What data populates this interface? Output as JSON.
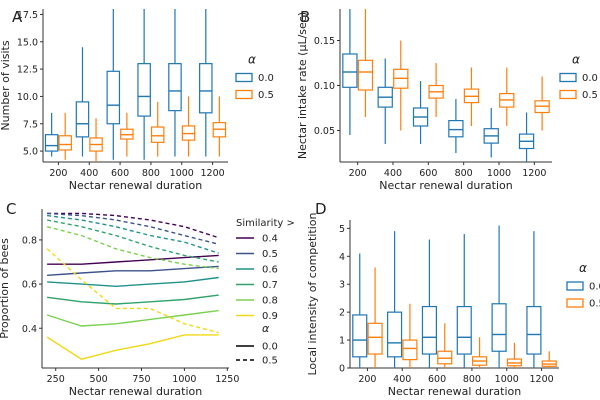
{
  "colors": {
    "alpha0": "#1f77b4",
    "alpha05": "#ff7f0e",
    "axis": "#333333",
    "text": "#222222"
  },
  "legend_alpha_title": "α",
  "chart_data": [
    {
      "panel": "A",
      "type": "box",
      "xlabel": "Nectar renewal duration",
      "ylabel": "Number of visits",
      "categories": [
        "200",
        "400",
        "600",
        "800",
        "1000",
        "1200"
      ],
      "ylim": [
        4,
        18
      ],
      "yticks": [
        "5.0",
        "7.5",
        "10.0",
        "12.5",
        "15.0",
        "17.5"
      ],
      "legend_title": "α",
      "series": [
        {
          "name": "0.0",
          "boxes": [
            [
              4.5,
              5.0,
              5.5,
              6.5,
              8.5
            ],
            [
              4.5,
              6.3,
              7.5,
              9.5,
              14.5
            ],
            [
              4.2,
              7.5,
              9.2,
              12.3,
              18.0
            ],
            [
              4.2,
              8.2,
              10.0,
              13.0,
              18.0
            ],
            [
              4.5,
              8.7,
              10.5,
              13.0,
              18.0
            ],
            [
              4.5,
              8.5,
              10.5,
              13.0,
              18.0
            ]
          ]
        },
        {
          "name": "0.5",
          "boxes": [
            [
              4.2,
              5.1,
              5.6,
              6.4,
              8.5
            ],
            [
              4.0,
              5.0,
              5.6,
              6.2,
              8.0
            ],
            [
              4.5,
              6.1,
              6.5,
              7.0,
              8.5
            ],
            [
              4.5,
              5.8,
              6.4,
              7.2,
              9.5
            ],
            [
              4.5,
              6.0,
              6.6,
              7.3,
              10.0
            ],
            [
              4.5,
              6.3,
              7.0,
              7.6,
              10.0
            ]
          ]
        }
      ]
    },
    {
      "panel": "B",
      "type": "box",
      "xlabel": "Nectar renewal duration",
      "ylabel": "Nectar intake rate (μL/sec)",
      "categories": [
        "200",
        "400",
        "600",
        "800",
        "1000",
        "1200"
      ],
      "ylim": [
        0.015,
        0.185
      ],
      "yticks": [
        "0.05",
        "0.10",
        "0.15"
      ],
      "legend_title": "α",
      "series": [
        {
          "name": "0.0",
          "boxes": [
            [
              0.045,
              0.098,
              0.115,
              0.135,
              0.185
            ],
            [
              0.035,
              0.076,
              0.087,
              0.098,
              0.13
            ],
            [
              0.035,
              0.055,
              0.065,
              0.075,
              0.105
            ],
            [
              0.025,
              0.043,
              0.051,
              0.061,
              0.085
            ],
            [
              0.02,
              0.036,
              0.044,
              0.052,
              0.075
            ],
            [
              0.015,
              0.03,
              0.038,
              0.046,
              0.07
            ]
          ]
        },
        {
          "name": "0.5",
          "boxes": [
            [
              0.065,
              0.095,
              0.115,
              0.128,
              0.185
            ],
            [
              0.05,
              0.097,
              0.108,
              0.118,
              0.15
            ],
            [
              0.065,
              0.086,
              0.093,
              0.1,
              0.125
            ],
            [
              0.055,
              0.081,
              0.088,
              0.096,
              0.12
            ],
            [
              0.055,
              0.076,
              0.084,
              0.091,
              0.12
            ],
            [
              0.05,
              0.07,
              0.077,
              0.083,
              0.11
            ]
          ]
        }
      ]
    },
    {
      "panel": "C",
      "type": "line",
      "xlabel": "Nectar renewal duration",
      "ylabel": "Proportion of bees",
      "x": [
        200,
        400,
        600,
        800,
        1000,
        1200
      ],
      "xlim": [
        170,
        1260
      ],
      "ylim": [
        0.22,
        0.94
      ],
      "xticks": [
        "250",
        "500",
        "750",
        "1000",
        "1250"
      ],
      "yticks": [
        "0.4",
        "0.6",
        "0.8"
      ],
      "legend_title": "Similarity >",
      "linestyle_title": "α",
      "linestyles": [
        "0.0",
        "0.5"
      ],
      "series": [
        {
          "similarity": "0.4",
          "color": "#440154",
          "alpha0": [
            0.69,
            0.69,
            0.7,
            0.71,
            0.72,
            0.73
          ],
          "alpha05": [
            0.92,
            0.92,
            0.91,
            0.89,
            0.86,
            0.81
          ]
        },
        {
          "similarity": "0.5",
          "color": "#3b528b",
          "alpha0": [
            0.64,
            0.65,
            0.66,
            0.66,
            0.67,
            0.68
          ],
          "alpha05": [
            0.92,
            0.91,
            0.89,
            0.86,
            0.82,
            0.78
          ]
        },
        {
          "similarity": "0.6",
          "color": "#21918c",
          "alpha0": [
            0.61,
            0.6,
            0.59,
            0.6,
            0.61,
            0.63
          ],
          "alpha05": [
            0.91,
            0.89,
            0.86,
            0.82,
            0.79,
            0.74
          ]
        },
        {
          "similarity": "0.7",
          "color": "#2fa36b",
          "alpha0": [
            0.54,
            0.52,
            0.51,
            0.52,
            0.53,
            0.55
          ],
          "alpha05": [
            0.89,
            0.86,
            0.82,
            0.77,
            0.73,
            0.7
          ]
        },
        {
          "similarity": "0.8",
          "color": "#7ad151",
          "alpha0": [
            0.46,
            0.41,
            0.42,
            0.44,
            0.46,
            0.48
          ],
          "alpha05": [
            0.86,
            0.82,
            0.76,
            0.72,
            0.69,
            0.67
          ]
        },
        {
          "similarity": "0.9",
          "color": "#f0d916",
          "alpha0": [
            0.36,
            0.26,
            0.3,
            0.33,
            0.37,
            0.37
          ],
          "alpha05": [
            0.76,
            0.62,
            0.49,
            0.49,
            0.42,
            0.38
          ]
        }
      ]
    },
    {
      "panel": "D",
      "type": "box",
      "xlabel": "Nectar renewal duration",
      "ylabel": "Local intensity of competition",
      "categories": [
        "200",
        "400",
        "600",
        "800",
        "1000",
        "1200"
      ],
      "ylim": [
        0,
        5.3
      ],
      "yticks": [
        "0",
        "1",
        "2",
        "3",
        "4",
        "5"
      ],
      "legend_title": "α",
      "series": [
        {
          "name": "0.0",
          "boxes": [
            [
              0.0,
              0.4,
              1.0,
              1.9,
              4.1
            ],
            [
              0.0,
              0.4,
              0.9,
              2.0,
              4.9
            ],
            [
              0.0,
              0.5,
              1.1,
              2.2,
              4.6
            ],
            [
              0.0,
              0.5,
              1.1,
              2.2,
              4.8
            ],
            [
              0.0,
              0.6,
              1.2,
              2.3,
              5.1
            ],
            [
              0.0,
              0.5,
              1.2,
              2.2,
              4.9
            ]
          ]
        },
        {
          "name": "0.5",
          "boxes": [
            [
              0.0,
              0.5,
              1.1,
              1.6,
              3.6
            ],
            [
              0.0,
              0.3,
              0.7,
              1.0,
              2.3
            ],
            [
              0.0,
              0.15,
              0.35,
              0.6,
              1.6
            ],
            [
              0.0,
              0.1,
              0.25,
              0.4,
              1.1
            ],
            [
              0.0,
              0.08,
              0.18,
              0.32,
              0.9
            ],
            [
              0.0,
              0.06,
              0.14,
              0.25,
              0.6
            ]
          ]
        }
      ]
    }
  ]
}
